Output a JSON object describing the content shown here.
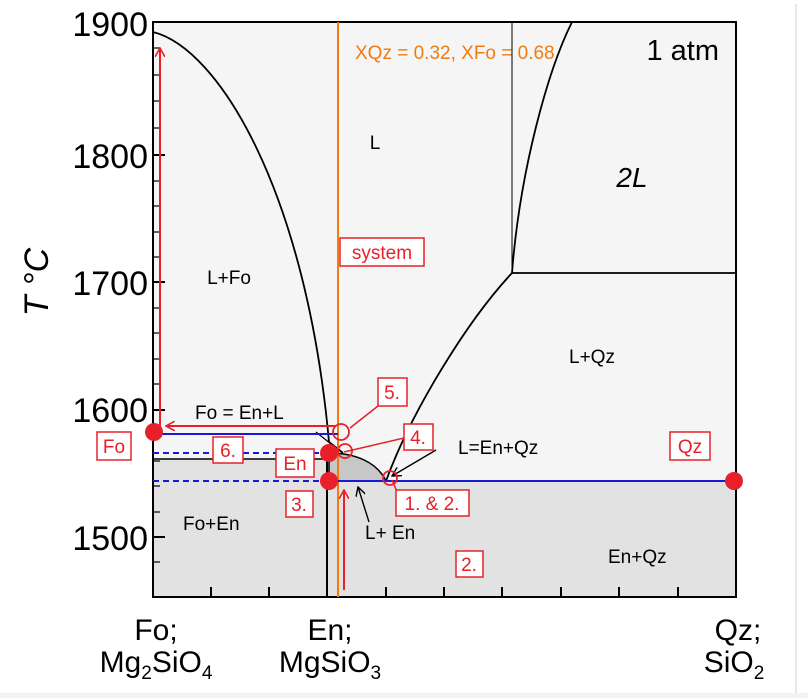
{
  "diagram": {
    "y_axis": {
      "label": "T °C",
      "ticks": [
        {
          "value": 1900,
          "label": "1900"
        },
        {
          "value": 1800,
          "label": "1800"
        },
        {
          "value": 1700,
          "label": "1700"
        },
        {
          "value": 1600,
          "label": "1600"
        },
        {
          "value": 1500,
          "label": "1500"
        }
      ]
    },
    "x_axis": {
      "left_label_1": "Fo;",
      "left_formula": {
        "a": "Mg",
        "a_sub": "2",
        "b": "SiO",
        "b_sub": "4"
      },
      "mid_label_1": "En;",
      "mid_formula": {
        "a": "MgSiO",
        "a_sub": "3"
      },
      "right_label_1": "Qz;",
      "right_formula": {
        "a": "SiO",
        "a_sub": "2"
      }
    },
    "composition_note": "XQz = 0.32, XFo = 0.68",
    "pressure": "1 atm",
    "fields": {
      "liquid": "L",
      "two_liquids": "2L",
      "liquid_fo": "L+Fo",
      "liquid_qz": "L+Qz",
      "fo_reaction": "Fo = En+L",
      "eutectic": "L=En+Qz",
      "fo_en": "Fo+En",
      "liquid_en": "L+ En",
      "en_qz": "En+Qz"
    },
    "boxed_labels": {
      "system": "system",
      "fo": "Fo",
      "en": "En",
      "qz": "Qz",
      "step_1_2": "1. & 2.",
      "step_2": "2.",
      "step_3": "3.",
      "step_4": "4.",
      "step_5": "5.",
      "step_6": "6."
    },
    "colors": {
      "annotation_red": "#e8202a",
      "system_line": "#f07c10",
      "isotherm_blue": "#1a1ad6",
      "field_light": "#f5f5f5",
      "field_grey": "#e2e2e2",
      "field_dark": "#c7c7c7"
    }
  }
}
